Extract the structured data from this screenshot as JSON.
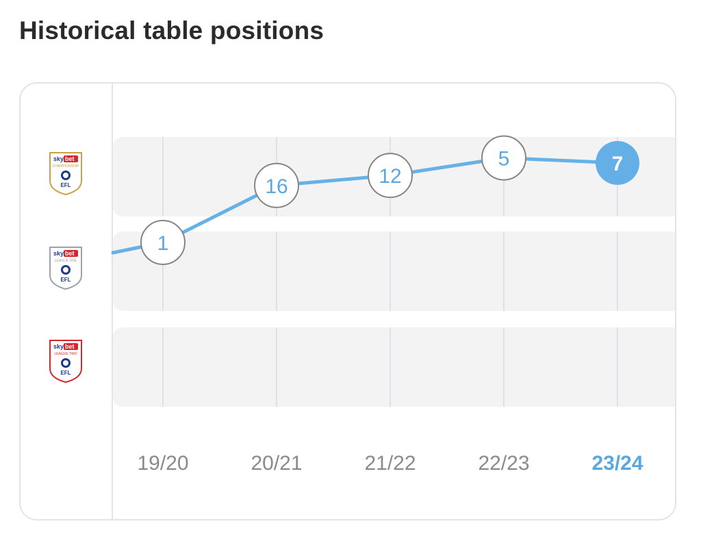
{
  "title": "Historical table positions",
  "divisions": [
    {
      "id": "championship",
      "lines": [
        "sky",
        "bet",
        "CHAMPIONSHIP",
        "EFL"
      ],
      "frame": "#c7a24a",
      "accent": "#d8262d"
    },
    {
      "id": "league-one",
      "lines": [
        "sky",
        "bet",
        "LEAGUE ONE",
        "EFL"
      ],
      "frame": "#9aa2ad",
      "accent": "#d8262d"
    },
    {
      "id": "league-two",
      "lines": [
        "sky",
        "bet",
        "LEAGUE TWO",
        "EFL"
      ],
      "frame": "#d8262d",
      "accent": "#d8262d"
    }
  ],
  "chart_data": {
    "type": "line",
    "title": "Historical table positions",
    "categories": [
      "19/20",
      "20/21",
      "21/22",
      "22/23",
      "23/24"
    ],
    "series": [
      {
        "values": [
          1,
          16,
          12,
          5,
          7
        ],
        "division": [
          "League One",
          "Championship",
          "Championship",
          "Championship",
          "Championship"
        ]
      }
    ],
    "highlight": "23/24",
    "colors": {
      "line": "#66b2e6",
      "point_border": "#858585",
      "label": "#5aa8df",
      "band": "#f3f3f3",
      "grid": "#e0e0e4",
      "tick": "#8a8a8a",
      "highlight_fill": "#64b0e6"
    }
  }
}
